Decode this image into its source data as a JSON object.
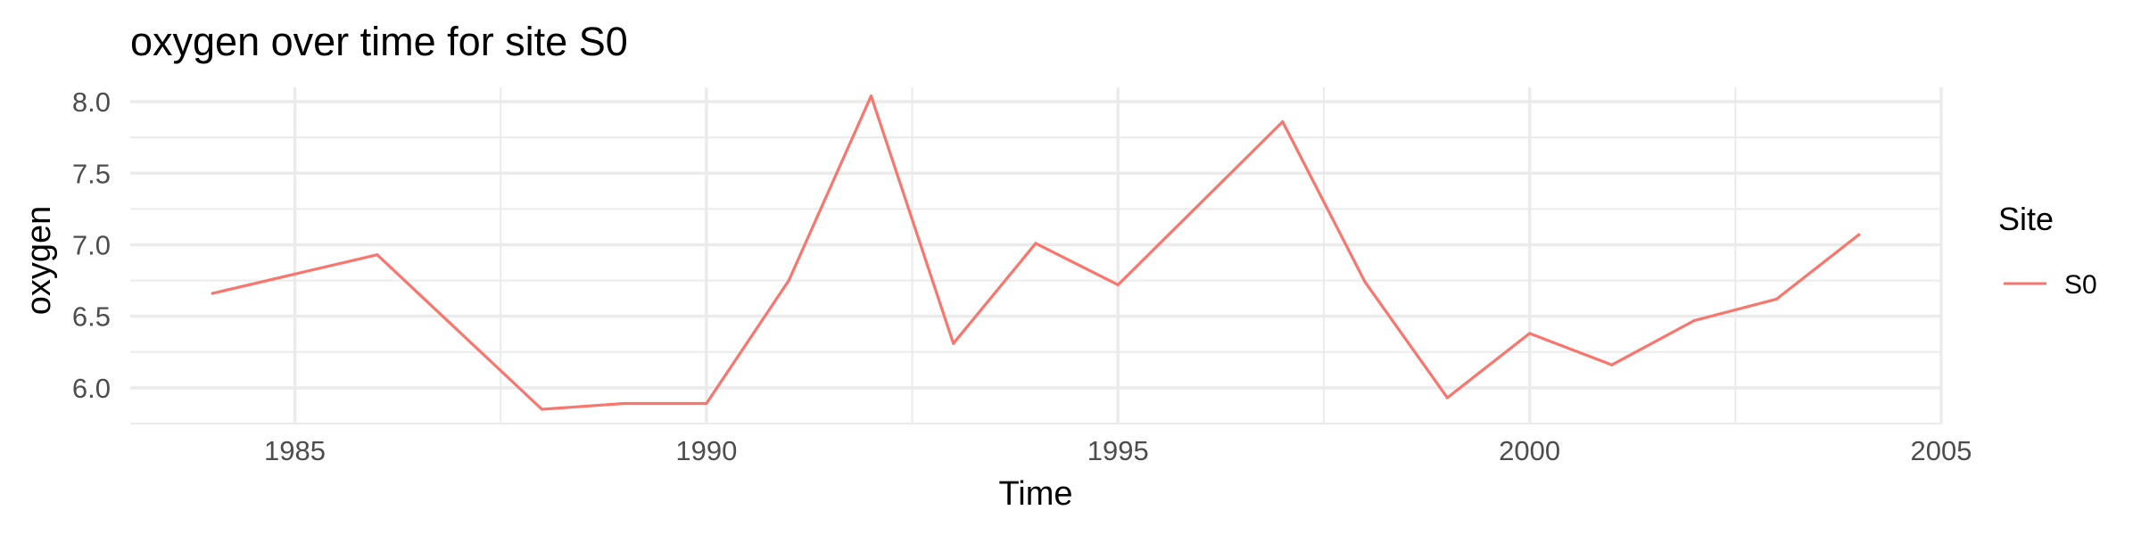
{
  "chart_data": {
    "type": "line",
    "title": "oxygen over time for site S0",
    "xlabel": "Time",
    "ylabel": "oxygen",
    "xlim": [
      1983,
      2005
    ],
    "ylim": [
      5.75,
      8.1
    ],
    "x_major_ticks": [
      1985,
      1990,
      1995,
      2000,
      2005
    ],
    "x_minor_ticks": [
      1987.5,
      1992.5,
      1997.5,
      2002.5
    ],
    "y_major_ticks": [
      6.0,
      6.5,
      7.0,
      7.5,
      8.0
    ],
    "y_minor_ticks": [
      5.75,
      6.25,
      6.75,
      7.25,
      7.75
    ],
    "x_tick_labels": [
      "1985",
      "1990",
      "1995",
      "2000",
      "2005"
    ],
    "y_tick_labels": [
      "6.0",
      "6.5",
      "7.0",
      "7.5",
      "8.0"
    ],
    "grid": true,
    "legend": {
      "title": "Site",
      "position": "right"
    },
    "series": [
      {
        "name": "S0",
        "color": "#F8766D",
        "x": [
          1984,
          1986,
          1988,
          1989,
          1990,
          1991,
          1992,
          1993,
          1994,
          1995,
          1997,
          1998,
          1999,
          2000,
          2001,
          2002,
          2003,
          2004
        ],
        "y": [
          6.66,
          6.93,
          5.85,
          5.89,
          5.89,
          6.75,
          8.04,
          6.31,
          7.01,
          6.72,
          7.86,
          6.74,
          5.93,
          6.38,
          6.16,
          6.47,
          6.62,
          7.07
        ]
      }
    ]
  }
}
